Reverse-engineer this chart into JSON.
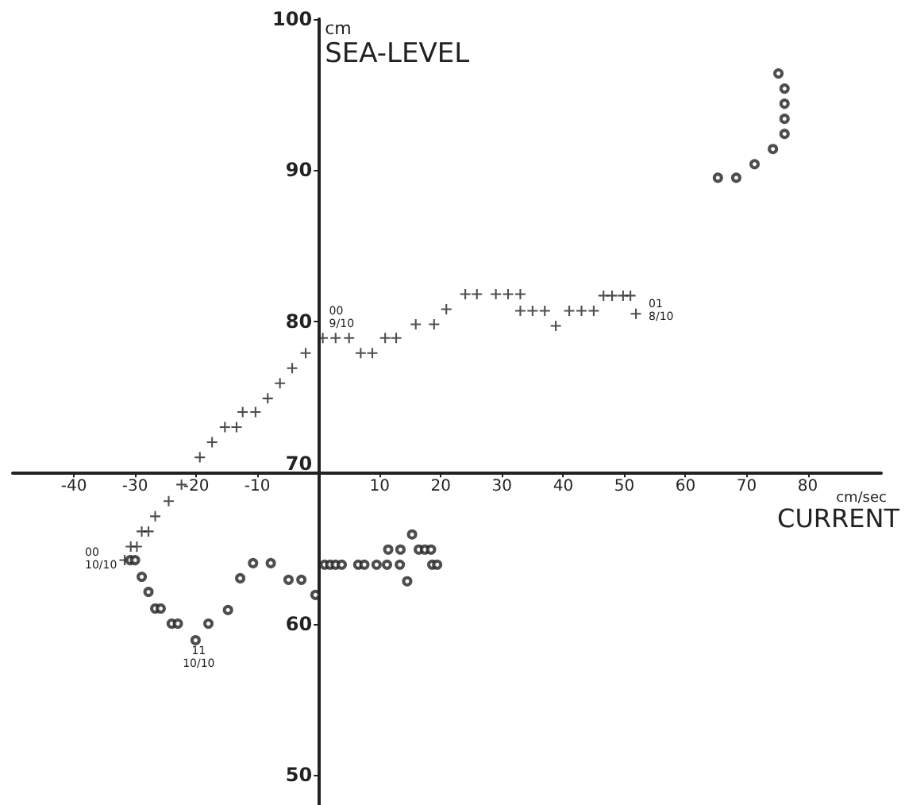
{
  "chart_data": {
    "type": "scatter",
    "xlabel": "cm/sec\nCURRENT",
    "ylabel": "cm\nSEA-LEVEL",
    "xlim": [
      -50,
      92
    ],
    "ylim": [
      48,
      100
    ],
    "xticks": [
      -40,
      -30,
      -20,
      -10,
      10,
      20,
      30,
      40,
      50,
      60,
      70,
      80
    ],
    "yticks": [
      50,
      60,
      70,
      80,
      90,
      100
    ],
    "grid": false,
    "series": [
      {
        "marker": "cross",
        "color": "#222222",
        "x": [
          -31.7,
          -30.7,
          -29.7,
          -28.9,
          -27.8,
          -26.7,
          -24.5,
          -22.4,
          -19.4,
          -17.4,
          -15.3,
          -13.4,
          -12.4,
          -10.3,
          -8.3,
          -6.3,
          -4.3,
          -2.1,
          0.7,
          2.8,
          5.0,
          6.9,
          8.8,
          10.9,
          12.7,
          15.9,
          18.9,
          20.9,
          24.0,
          25.9,
          29.0,
          31.0,
          33.0,
          33.0,
          35.0,
          37.0,
          38.8,
          41.0,
          43.0,
          45.0,
          46.6,
          48.0,
          49.8,
          51.0,
          51.9
        ],
        "values": [
          64.2,
          65.1,
          65.1,
          66.1,
          66.1,
          67.1,
          68.1,
          69.2,
          71.0,
          72.0,
          73.0,
          73.0,
          74.0,
          74.0,
          74.9,
          75.9,
          76.9,
          77.9,
          78.9,
          78.9,
          78.9,
          77.9,
          77.9,
          78.9,
          78.9,
          79.8,
          79.8,
          80.8,
          81.8,
          81.8,
          81.8,
          81.8,
          81.8,
          80.7,
          80.7,
          80.7,
          79.7,
          80.7,
          80.7,
          80.7,
          81.7,
          81.7,
          81.7,
          81.7,
          80.5
        ]
      },
      {
        "marker": "circle",
        "color": "#222222",
        "x": [
          -30.8,
          -30.0,
          -28.9,
          -27.8,
          -26.7,
          -25.8,
          -24.0,
          -23.0,
          -20.1,
          -18.0,
          -14.8,
          -12.8,
          -10.7,
          -7.8,
          -4.9,
          -2.8,
          -0.5,
          1.0,
          1.9,
          2.8,
          3.8,
          6.5,
          7.5,
          9.5,
          11.2,
          13.3,
          11.4,
          13.4,
          14.5,
          15.3,
          16.4,
          17.4,
          18.4,
          18.6,
          19.4,
          65.3,
          68.3,
          71.3,
          74.3,
          76.2,
          76.2,
          76.2,
          76.2,
          75.2
        ],
        "values": [
          64.2,
          64.2,
          63.1,
          62.1,
          61.0,
          61.0,
          60.0,
          60.0,
          58.9,
          60.0,
          60.9,
          63.0,
          64.0,
          64.0,
          62.9,
          62.9,
          61.9,
          63.9,
          63.9,
          63.9,
          63.9,
          63.9,
          63.9,
          63.9,
          63.9,
          63.9,
          64.9,
          64.9,
          62.8,
          65.9,
          64.9,
          64.9,
          64.9,
          63.9,
          63.9,
          89.5,
          89.5,
          90.4,
          91.4,
          92.4,
          93.4,
          94.4,
          95.4,
          96.4
        ]
      }
    ],
    "annotations": [
      {
        "text": "00\n10/10",
        "x": -31.7,
        "y": 64.2
      },
      {
        "text": "11\n10/10",
        "x": -20.1,
        "y": 58.9
      },
      {
        "text": "01\n8/10",
        "x": 51.9,
        "y": 80.5
      },
      {
        "text": "00\n9/10",
        "x": 0.7,
        "y": 78.9
      }
    ]
  }
}
